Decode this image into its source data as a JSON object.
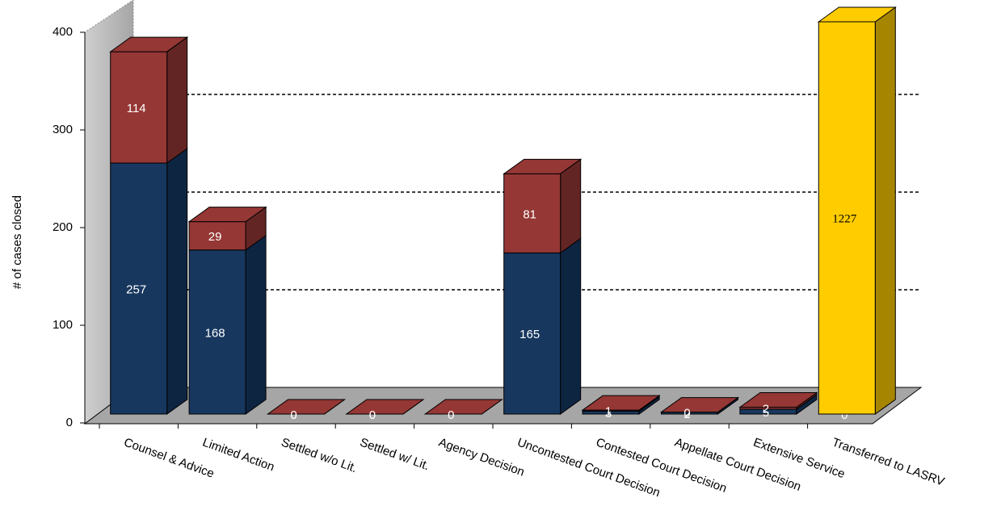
{
  "chart_data": {
    "type": "bar3d_stacked",
    "y_label": "# of cases closed",
    "categories": [
      "Counsel & Advice",
      "Limited Action",
      "Settled w/o Lit.",
      "Settled w/ Lit.",
      "Agency Decision",
      "Uncontested Court Decision",
      "Contested Court Decision",
      "Appellate Court Decision",
      "Extensive Service",
      "Transferred to LASRV"
    ],
    "series": [
      {
        "color": "#17375e",
        "side": "#0e2542",
        "values": [
          257,
          168,
          0,
          0,
          null,
          165,
          3,
          2,
          5,
          0
        ]
      },
      {
        "color": "#953735",
        "side": "#632523",
        "values": [
          114,
          29,
          0,
          0,
          0,
          81,
          1,
          0,
          2,
          null
        ]
      },
      {
        "color": "#ffcc00",
        "side": "#a68500",
        "label_font": "serif",
        "values": [
          null,
          null,
          null,
          null,
          null,
          null,
          null,
          null,
          null,
          1227
        ]
      }
    ],
    "ylim": [
      0,
      400
    ],
    "yticks": [
      0,
      100,
      200,
      300,
      400
    ],
    "grid": true
  }
}
